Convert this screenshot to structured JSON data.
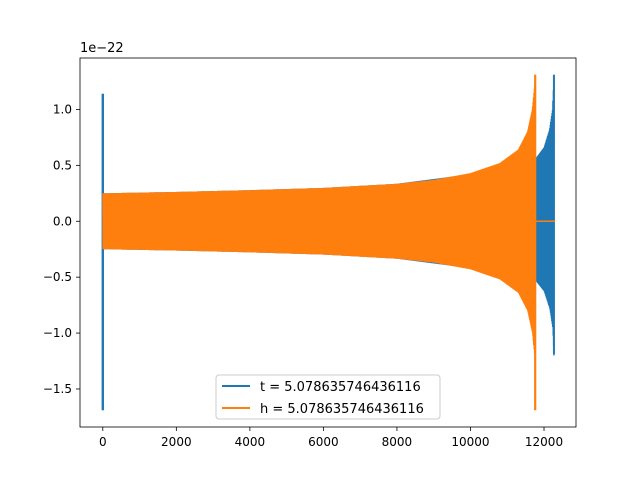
{
  "chart_data": {
    "type": "line",
    "title": "",
    "xlabel": "",
    "ylabel": "",
    "y_scale_label": "1e−22",
    "xlim": [
      -620,
      12870
    ],
    "ylim": [
      -1.84,
      1.46
    ],
    "xticks": [
      0,
      2000,
      4000,
      6000,
      8000,
      10000,
      12000
    ],
    "xtick_labels": [
      "0",
      "2000",
      "4000",
      "6000",
      "8000",
      "10000",
      "12000"
    ],
    "yticks": [
      -1.5,
      -1.0,
      -0.5,
      0.0,
      0.5,
      1.0
    ],
    "ytick_labels": [
      "−1.5",
      "−1.0",
      "−0.5",
      "0.0",
      "0.5",
      "1.0"
    ],
    "grid": false,
    "legend_position": "lower center",
    "series": [
      {
        "name": "t = 5.078635746436116",
        "color": "#1f77b4",
        "description_values": {
          "initial_spike_x": 0,
          "initial_spike_max": 1.14,
          "initial_spike_min": -1.69,
          "baseline_amplitude_start": 0.25,
          "merger_x": 12270,
          "merger_max": 1.31,
          "merger_min": -1.19,
          "end_x": 12300
        },
        "envelope": [
          [
            0,
            0.25
          ],
          [
            2000,
            0.262
          ],
          [
            4000,
            0.278
          ],
          [
            6000,
            0.298
          ],
          [
            8000,
            0.335
          ],
          [
            10000,
            0.42
          ],
          [
            11000,
            0.52
          ],
          [
            11500,
            0.62
          ],
          [
            11750,
            0.55
          ],
          [
            12000,
            0.66
          ],
          [
            12150,
            0.82
          ],
          [
            12230,
            1.0
          ],
          [
            12270,
            1.31
          ]
        ]
      },
      {
        "name": "h = 5.078635746436116",
        "color": "#ff7f0e",
        "description_values": {
          "baseline_amplitude_start": 0.25,
          "merger_x": 11760,
          "merger_max": 1.31,
          "merger_min": -1.69,
          "post_merger_value": 0.0,
          "end_x": 12300
        },
        "envelope": [
          [
            0,
            0.25
          ],
          [
            2000,
            0.262
          ],
          [
            4000,
            0.278
          ],
          [
            6000,
            0.298
          ],
          [
            8000,
            0.335
          ],
          [
            9000,
            0.37
          ],
          [
            10000,
            0.43
          ],
          [
            10800,
            0.52
          ],
          [
            11300,
            0.64
          ],
          [
            11550,
            0.8
          ],
          [
            11680,
            1.0
          ],
          [
            11740,
            1.2
          ],
          [
            11760,
            1.31
          ]
        ]
      }
    ]
  }
}
